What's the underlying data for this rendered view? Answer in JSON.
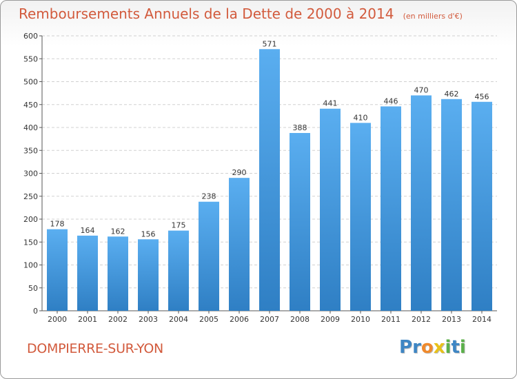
{
  "chart_data": {
    "type": "bar",
    "title": "Remboursements Annuels de la Dette de 2000 à 2014",
    "unit_note": "(en milliers d'€)",
    "categories": [
      "2000",
      "2001",
      "2002",
      "2003",
      "2004",
      "2005",
      "2006",
      "2007",
      "2008",
      "2009",
      "2010",
      "2011",
      "2012",
      "2013",
      "2014"
    ],
    "values": [
      178,
      164,
      162,
      156,
      175,
      238,
      290,
      571,
      388,
      441,
      410,
      446,
      470,
      462,
      456
    ],
    "ylim": [
      0,
      600
    ],
    "yticks": [
      0,
      50,
      100,
      150,
      200,
      250,
      300,
      350,
      400,
      450,
      500,
      550,
      600
    ],
    "xlabel": "",
    "ylabel": "",
    "grid": true,
    "bar_color": "#4a9ee0"
  },
  "footer": {
    "town": "DOMPIERRE-SUR-YON",
    "brand_letters": [
      {
        "ch": "P",
        "color": "#3e86c4"
      },
      {
        "ch": "r",
        "color": "#3e86c4"
      },
      {
        "ch": "o",
        "color": "#f08a2c"
      },
      {
        "ch": "x",
        "color": "#e8c21a"
      },
      {
        "ch": "i",
        "color": "#5bb04a"
      },
      {
        "ch": "t",
        "color": "#3e86c4"
      },
      {
        "ch": "i",
        "color": "#5bb04a"
      }
    ]
  }
}
